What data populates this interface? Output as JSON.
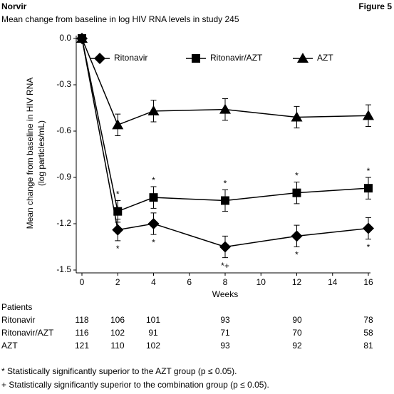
{
  "header": {
    "title": "Norvir",
    "figure": "Figure 5",
    "subtitle": "Mean change from baseline in log HIV RNA levels in study 245"
  },
  "chart_data": {
    "type": "line",
    "y_label": [
      "Mean change from baseline in HIV RNA",
      "(log particles/mL)"
    ],
    "x_label": "Weeks",
    "x": [
      0,
      2,
      4,
      8,
      12,
      16
    ],
    "xlim": [
      0,
      16
    ],
    "xticks": [
      0,
      2,
      4,
      6,
      8,
      10,
      12,
      14,
      16
    ],
    "ylim": [
      -1.5,
      0
    ],
    "yticks": [
      {
        "value": 0,
        "label": "0.0"
      },
      {
        "value": -0.3,
        "label": "-0.3"
      },
      {
        "value": -0.6,
        "label": "-0.6"
      },
      {
        "value": -0.9,
        "label": "-0.9"
      },
      {
        "value": -1.2,
        "label": "-1.2"
      },
      {
        "value": -1.5,
        "label": "-1.5"
      }
    ],
    "series": [
      {
        "name": "Ritonavir",
        "color": "#000000",
        "marker": "diamond",
        "values": [
          0,
          -1.24,
          -1.2,
          -1.35,
          -1.28,
          -1.23
        ],
        "errors": [
          0,
          0.07,
          0.07,
          0.07,
          0.07,
          0.07
        ]
      },
      {
        "name": "Ritonavir/AZT",
        "color": "#000000",
        "marker": "square",
        "values": [
          0,
          -1.12,
          -1.03,
          -1.05,
          -1.0,
          -0.97
        ],
        "errors": [
          0,
          0.07,
          0.07,
          0.07,
          0.07,
          0.07
        ]
      },
      {
        "name": "AZT",
        "color": "#000000",
        "marker": "triangle",
        "values": [
          0,
          -0.56,
          -0.47,
          -0.46,
          -0.51,
          -0.5
        ],
        "errors": [
          0,
          0.07,
          0.07,
          0.07,
          0.07,
          0.07
        ]
      }
    ],
    "annotations": [
      {
        "x": 2,
        "series": "Ritonavir/AZT",
        "text": "*"
      },
      {
        "x": 2,
        "series": "Ritonavir",
        "text": "*"
      },
      {
        "x": 4,
        "series": "Ritonavir/AZT",
        "text": "*"
      },
      {
        "x": 4,
        "series": "Ritonavir",
        "text": "*"
      },
      {
        "x": 8,
        "series": "Ritonavir/AZT",
        "text": "*"
      },
      {
        "x": 8,
        "series": "Ritonavir",
        "text": "*+"
      },
      {
        "x": 12,
        "series": "Ritonavir/AZT",
        "text": "*"
      },
      {
        "x": 12,
        "series": "Ritonavir",
        "text": "*"
      },
      {
        "x": 16,
        "series": "Ritonavir/AZT",
        "text": "*"
      },
      {
        "x": 16,
        "series": "Ritonavir",
        "text": "*"
      }
    ]
  },
  "table": {
    "title": "Patients",
    "rows": [
      [
        "Ritonavir",
        "118",
        "106",
        "101",
        "93",
        "90",
        "78"
      ],
      [
        "Ritonavir/AZT",
        "116",
        "102",
        "91",
        "71",
        "70",
        "58"
      ],
      [
        "AZT",
        "121",
        "110",
        "102",
        "93",
        "92",
        "81"
      ]
    ]
  },
  "footnotes": [
    "* Statistically significantly superior to the AZT group (p ≤ 0.05).",
    "+ Statistically significantly superior to the combination group (p ≤ 0.05)."
  ]
}
